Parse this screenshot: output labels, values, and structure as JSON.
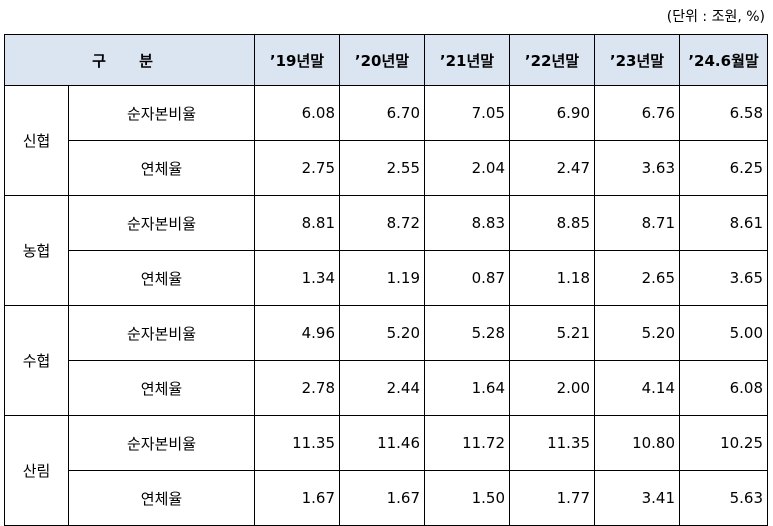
{
  "unit_note": "(단위 : 조원, %)",
  "header": {
    "label": "구 분",
    "columns": [
      "’19년말",
      "’20년말",
      "’21년말",
      "’22년말",
      "’23년말",
      "’24.6월말"
    ]
  },
  "groups": [
    {
      "name": "신협",
      "rows": [
        {
          "metric": "순자본비율",
          "values": [
            "6.08",
            "6.70",
            "7.05",
            "6.90",
            "6.76",
            "6.58"
          ]
        },
        {
          "metric": "연체율",
          "values": [
            "2.75",
            "2.55",
            "2.04",
            "2.47",
            "3.63",
            "6.25"
          ]
        }
      ]
    },
    {
      "name": "농협",
      "rows": [
        {
          "metric": "순자본비율",
          "values": [
            "8.81",
            "8.72",
            "8.83",
            "8.85",
            "8.71",
            "8.61"
          ]
        },
        {
          "metric": "연체율",
          "values": [
            "1.34",
            "1.19",
            "0.87",
            "1.18",
            "2.65",
            "3.65"
          ]
        }
      ]
    },
    {
      "name": "수협",
      "rows": [
        {
          "metric": "순자본비율",
          "values": [
            "4.96",
            "5.20",
            "5.28",
            "5.21",
            "5.20",
            "5.00"
          ]
        },
        {
          "metric": "연체율",
          "values": [
            "2.78",
            "2.44",
            "1.64",
            "2.00",
            "4.14",
            "6.08"
          ]
        }
      ]
    },
    {
      "name": "산림",
      "rows": [
        {
          "metric": "순자본비율",
          "values": [
            "11.35",
            "11.46",
            "11.72",
            "11.35",
            "10.80",
            "10.25"
          ]
        },
        {
          "metric": "연체율",
          "values": [
            "1.67",
            "1.67",
            "1.50",
            "1.77",
            "3.41",
            "5.63"
          ]
        }
      ]
    }
  ]
}
